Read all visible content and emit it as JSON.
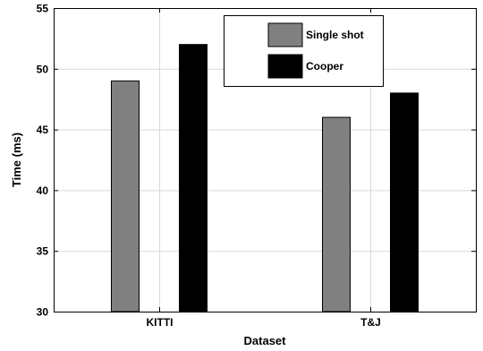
{
  "chart_data": {
    "type": "bar",
    "categories": [
      "KITTI",
      "T&J"
    ],
    "series": [
      {
        "name": "Single shot",
        "values": [
          49,
          46
        ],
        "color": "#808080"
      },
      {
        "name": "Cooper",
        "values": [
          52,
          48
        ],
        "color": "#000000"
      }
    ],
    "xlabel": "Dataset",
    "ylabel": "Time (ms)",
    "ylim": [
      30,
      55
    ],
    "yticks": [
      30,
      35,
      40,
      45,
      50,
      55
    ],
    "grid": true,
    "legend_position": "top-center"
  }
}
